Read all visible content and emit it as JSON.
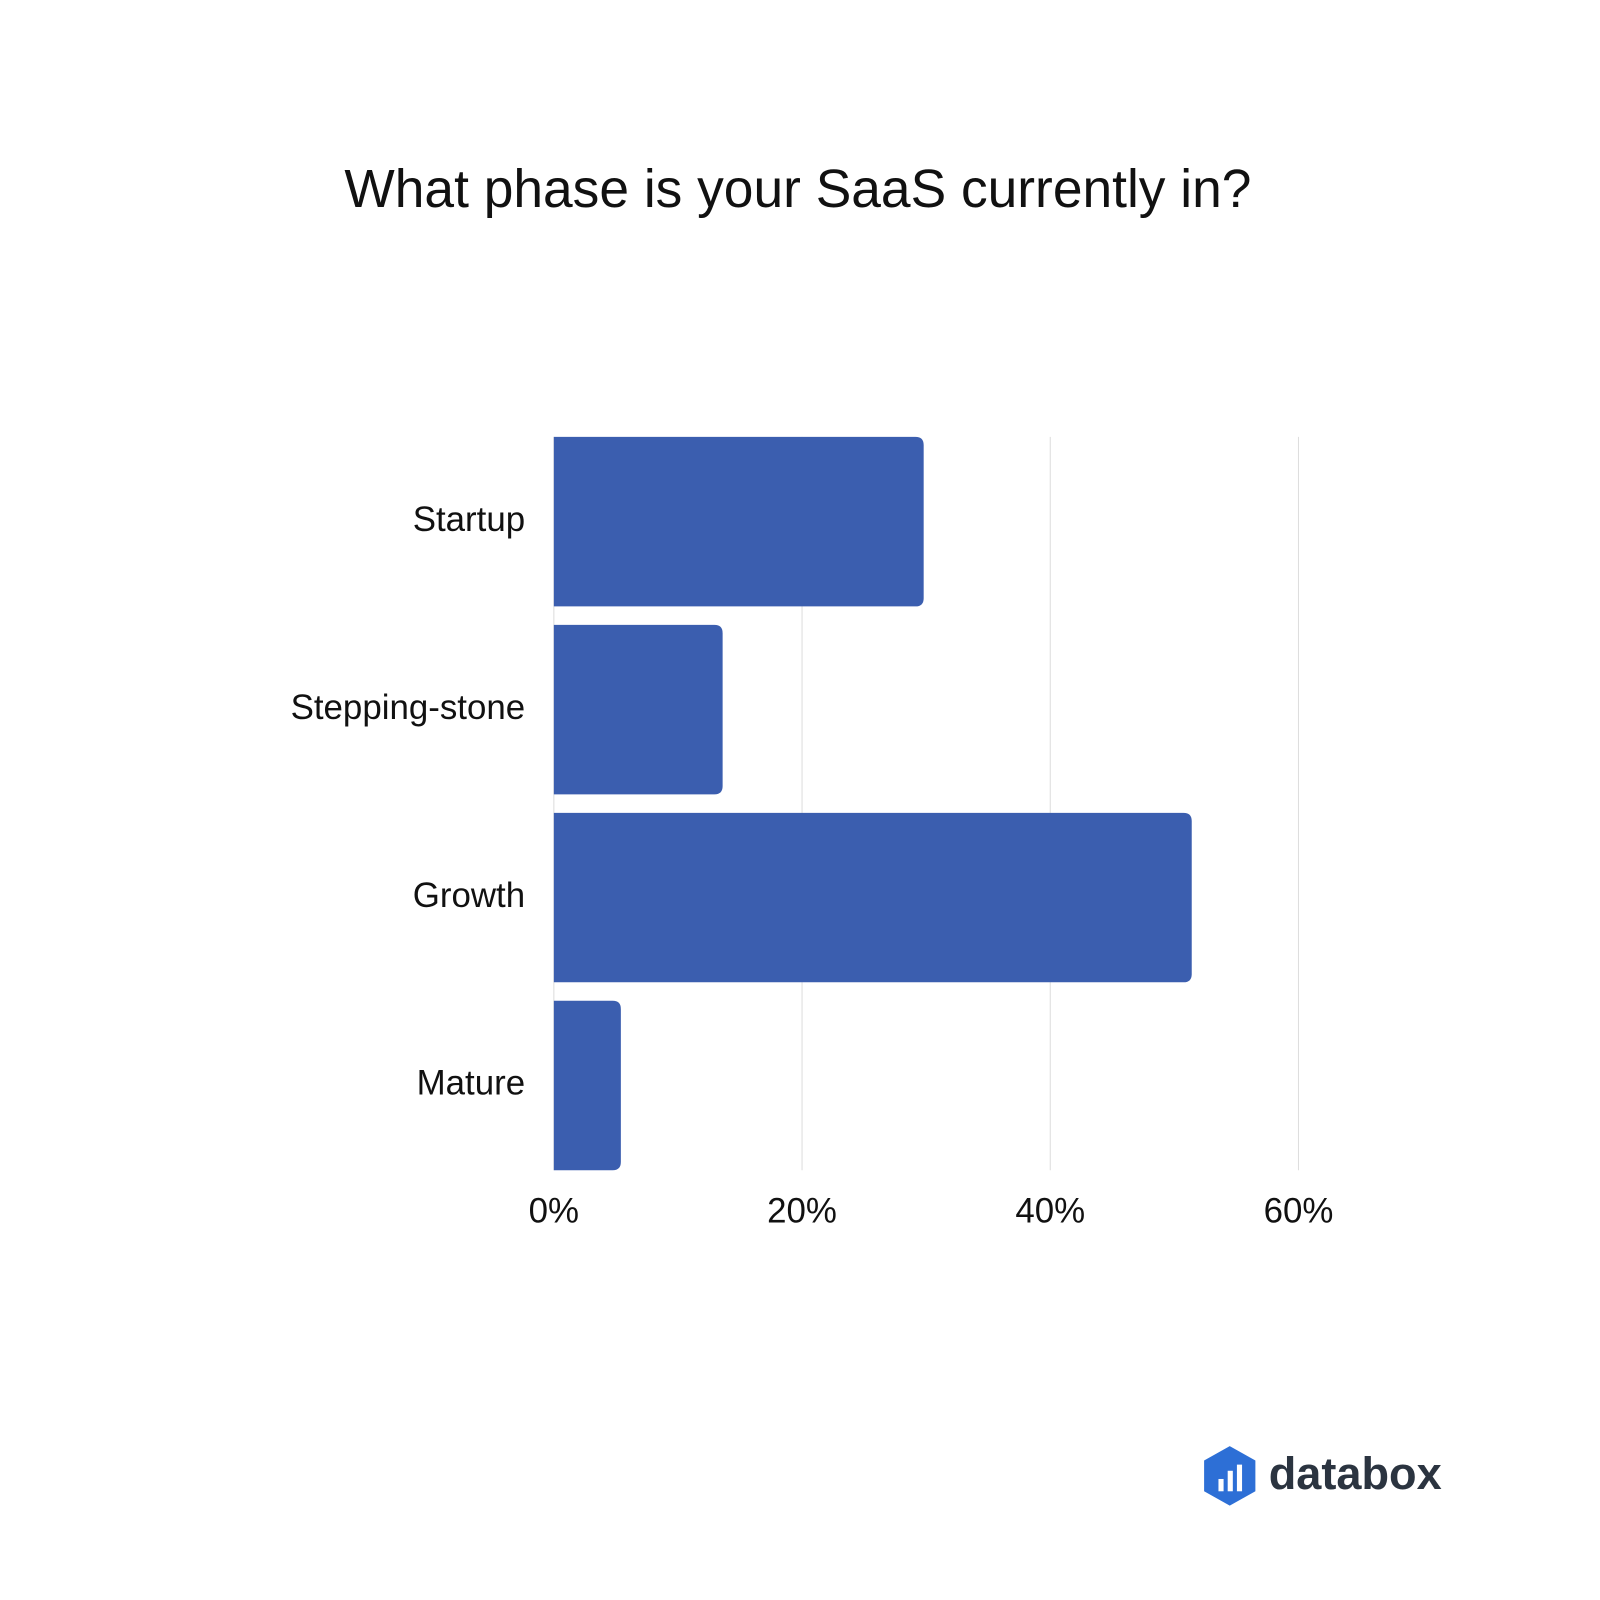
{
  "chart_data": {
    "type": "hbar",
    "title": "What phase is your SaaS currently in?",
    "categories": [
      "Startup",
      "Stepping-stone",
      "Growth",
      "Mature"
    ],
    "values": [
      29.8,
      13.6,
      51.4,
      5.4
    ],
    "color": "#3b5eaf",
    "xlim": [
      0,
      60
    ],
    "xticks": [
      {
        "value": 0,
        "label": "0%"
      },
      {
        "value": 20,
        "label": "20%"
      },
      {
        "value": 40,
        "label": "40%"
      },
      {
        "value": 60,
        "label": "60%"
      }
    ],
    "grid": true
  },
  "logo": {
    "text": "databox"
  }
}
